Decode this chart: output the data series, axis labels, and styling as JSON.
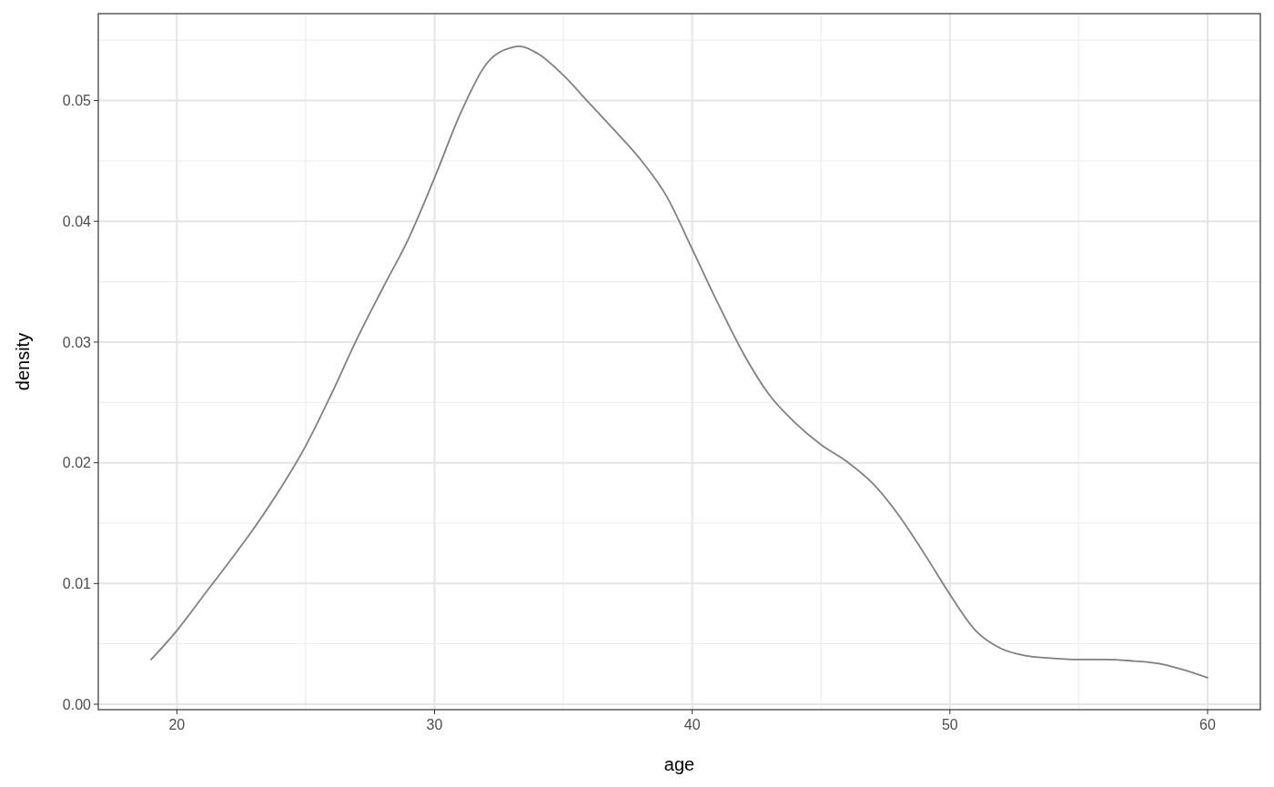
{
  "chart_data": {
    "type": "line",
    "xlabel": "age",
    "ylabel": "density",
    "x": [
      19,
      20,
      21,
      22,
      23,
      24,
      25,
      26,
      27,
      28,
      29,
      30,
      31,
      32,
      33,
      33.3,
      34,
      35,
      36,
      37,
      38,
      39,
      40,
      41,
      42,
      43,
      44,
      45,
      46,
      47,
      48,
      49,
      50,
      51,
      52,
      53,
      54,
      55,
      56,
      57,
      58,
      59,
      60
    ],
    "series": [
      {
        "color": "#808080",
        "values": [
          0.0037,
          0.0061,
          0.0089,
          0.0117,
          0.0146,
          0.0178,
          0.0214,
          0.0257,
          0.0303,
          0.0345,
          0.0386,
          0.0436,
          0.0489,
          0.053,
          0.0544,
          0.0545,
          0.0539,
          0.0521,
          0.0498,
          0.0475,
          0.0451,
          0.0421,
          0.0377,
          0.0332,
          0.029,
          0.0256,
          0.0233,
          0.0215,
          0.0201,
          0.0183,
          0.0157,
          0.0125,
          0.0091,
          0.0061,
          0.0046,
          0.004,
          0.0038,
          0.0037,
          0.0037,
          0.0036,
          0.0034,
          0.0029,
          0.0022
        ]
      }
    ],
    "xlim": [
      16.95,
      62.05
    ],
    "ylim": [
      -0.00045,
      0.0572
    ],
    "xticks": [
      20,
      30,
      40,
      50,
      60
    ],
    "yticks": [
      {
        "value": 0,
        "label": "0.00"
      },
      {
        "value": 0.01,
        "label": "0.01"
      },
      {
        "value": 0.02,
        "label": "0.02"
      },
      {
        "value": 0.03,
        "label": "0.03"
      },
      {
        "value": 0.04,
        "label": "0.04"
      },
      {
        "value": 0.05,
        "label": "0.05"
      }
    ],
    "grid": true,
    "marker": "none",
    "line_style": "solid"
  }
}
